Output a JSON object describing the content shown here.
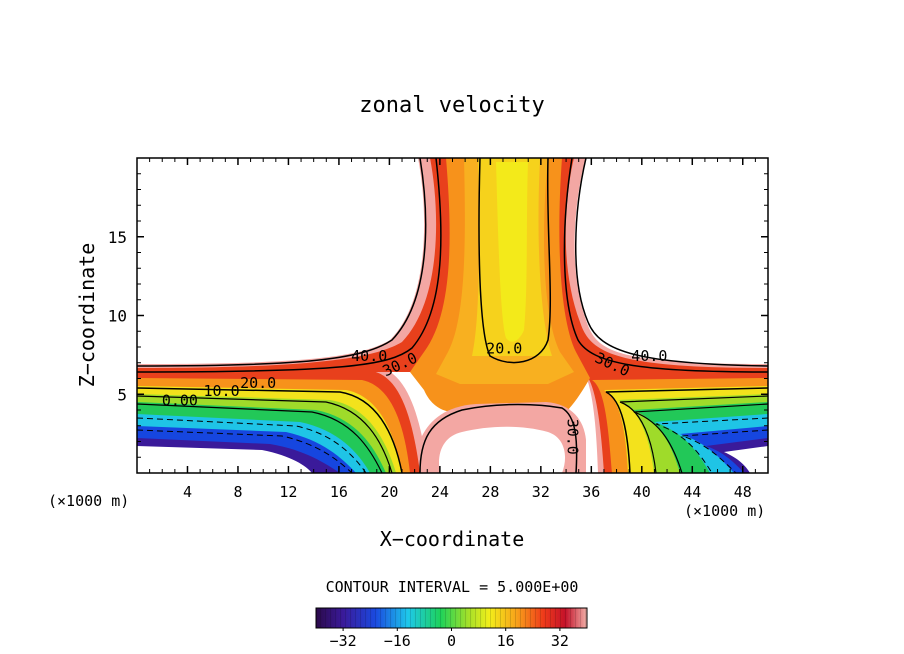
{
  "chart_data": {
    "type": "heatmap",
    "title": "zonal velocity",
    "xlabel": "X−coordinate",
    "ylabel": "Z−coordinate",
    "x_units_left": "(×1000 m)",
    "x_units_right": "(×1000 m)",
    "xlim": [
      0,
      50
    ],
    "ylim": [
      0,
      20
    ],
    "x_ticks": [
      4,
      8,
      12,
      16,
      20,
      24,
      28,
      32,
      36,
      40,
      44,
      48
    ],
    "x_tick_labels": [
      "4",
      "8",
      "12",
      "16",
      "20",
      "24",
      "28",
      "32",
      "36",
      "40",
      "44",
      "48"
    ],
    "y_ticks": [
      5,
      10,
      15
    ],
    "y_tick_labels": [
      "5",
      "10",
      "15"
    ],
    "contour_interval_text": "CONTOUR INTERVAL = 5.000E+00",
    "contour_labels": [
      {
        "text": "40.0",
        "x": 18.4,
        "z": 7.1
      },
      {
        "text": "30.0",
        "x": 21.0,
        "z": 6.6
      },
      {
        "text": "20.0",
        "x": 29.1,
        "z": 7.6
      },
      {
        "text": "30.0",
        "x": 37.5,
        "z": 6.6
      },
      {
        "text": "40.0",
        "x": 40.6,
        "z": 7.1
      },
      {
        "text": "20.0",
        "x": 9.6,
        "z": 5.4
      },
      {
        "text": "10.0",
        "x": 6.7,
        "z": 4.9
      },
      {
        "text": "0.00",
        "x": 3.4,
        "z": 4.3
      },
      {
        "text": "30.0",
        "x": 34.1,
        "z": 2.3
      }
    ],
    "colorbar": {
      "min": -40,
      "max": 40,
      "ticks": [
        -32,
        -16,
        0,
        16,
        32
      ],
      "tick_labels": [
        "−32",
        "−16",
        "0",
        "16",
        "32"
      ]
    }
  }
}
